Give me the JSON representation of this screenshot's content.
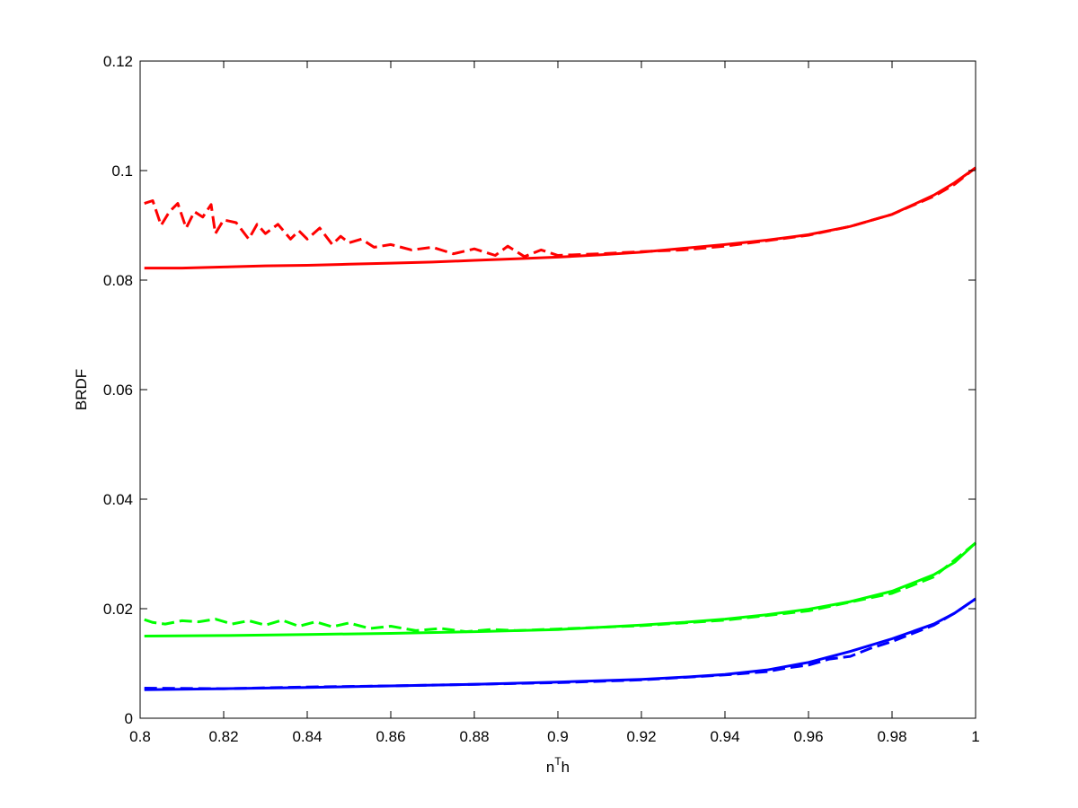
{
  "chart_data": {
    "type": "line",
    "title": "",
    "xlabel_base": "n",
    "xlabel_sup": "T",
    "xlabel_tail": "h",
    "ylabel": "BRDF",
    "xlim": [
      0.8,
      1
    ],
    "ylim": [
      0,
      0.12
    ],
    "xticks": [
      0.8,
      0.82,
      0.84,
      0.86,
      0.88,
      0.9,
      0.92,
      0.94,
      0.96,
      0.98,
      1
    ],
    "xtick_labels": [
      "0.8",
      "0.82",
      "0.84",
      "0.86",
      "0.88",
      "0.9",
      "0.92",
      "0.94",
      "0.96",
      "0.98",
      "1"
    ],
    "yticks": [
      0,
      0.02,
      0.04,
      0.06,
      0.08,
      0.1,
      0.12
    ],
    "ytick_labels": [
      "0",
      "0.02",
      "0.04",
      "0.06",
      "0.08",
      "0.1",
      "0.12"
    ],
    "grid": false,
    "series": [
      {
        "color": "#ff0000",
        "style": "solid",
        "x": [
          0.801,
          0.81,
          0.82,
          0.83,
          0.84,
          0.85,
          0.86,
          0.87,
          0.88,
          0.89,
          0.9,
          0.91,
          0.92,
          0.93,
          0.94,
          0.95,
          0.96,
          0.97,
          0.98,
          0.99,
          0.995,
          1.0
        ],
        "y": [
          0.0822,
          0.0822,
          0.0824,
          0.0826,
          0.0827,
          0.0829,
          0.0831,
          0.0833,
          0.0836,
          0.0839,
          0.0842,
          0.0846,
          0.0851,
          0.0858,
          0.0865,
          0.0873,
          0.0883,
          0.0898,
          0.092,
          0.0955,
          0.0978,
          0.1005
        ]
      },
      {
        "color": "#ff0000",
        "style": "dashed",
        "x": [
          0.801,
          0.803,
          0.805,
          0.807,
          0.809,
          0.811,
          0.813,
          0.815,
          0.817,
          0.818,
          0.82,
          0.823,
          0.826,
          0.828,
          0.83,
          0.833,
          0.836,
          0.838,
          0.84,
          0.843,
          0.846,
          0.848,
          0.85,
          0.853,
          0.856,
          0.86,
          0.865,
          0.87,
          0.875,
          0.88,
          0.885,
          0.888,
          0.892,
          0.896,
          0.9,
          0.91,
          0.92,
          0.93,
          0.94,
          0.95,
          0.96,
          0.97,
          0.98,
          0.99,
          0.995,
          1.0
        ],
        "y": [
          0.094,
          0.0945,
          0.09,
          0.0925,
          0.094,
          0.0895,
          0.0925,
          0.0915,
          0.0938,
          0.0885,
          0.091,
          0.0905,
          0.0875,
          0.0902,
          0.0885,
          0.0902,
          0.0875,
          0.089,
          0.0875,
          0.0895,
          0.0865,
          0.088,
          0.0868,
          0.0875,
          0.086,
          0.0865,
          0.0855,
          0.086,
          0.0848,
          0.0857,
          0.0845,
          0.0862,
          0.0843,
          0.0855,
          0.0845,
          0.0848,
          0.0852,
          0.0855,
          0.0862,
          0.0872,
          0.0882,
          0.0898,
          0.092,
          0.0953,
          0.0975,
          0.1005
        ]
      },
      {
        "color": "#00ff00",
        "style": "solid",
        "x": [
          0.801,
          0.82,
          0.84,
          0.86,
          0.88,
          0.9,
          0.91,
          0.92,
          0.93,
          0.94,
          0.95,
          0.96,
          0.97,
          0.98,
          0.99,
          0.995,
          1.0
        ],
        "y": [
          0.015,
          0.0151,
          0.0153,
          0.0155,
          0.0158,
          0.0162,
          0.0166,
          0.017,
          0.0175,
          0.0181,
          0.0189,
          0.0199,
          0.0213,
          0.0232,
          0.0262,
          0.0285,
          0.032
        ]
      },
      {
        "color": "#00ff00",
        "style": "dashed",
        "x": [
          0.801,
          0.803,
          0.806,
          0.81,
          0.814,
          0.818,
          0.822,
          0.826,
          0.83,
          0.834,
          0.838,
          0.842,
          0.846,
          0.85,
          0.855,
          0.86,
          0.866,
          0.872,
          0.878,
          0.884,
          0.89,
          0.9,
          0.92,
          0.94,
          0.96,
          0.98,
          0.99,
          1.0
        ],
        "y": [
          0.018,
          0.0175,
          0.0172,
          0.0178,
          0.0176,
          0.0181,
          0.0172,
          0.0178,
          0.017,
          0.0179,
          0.0168,
          0.0176,
          0.0167,
          0.0174,
          0.0164,
          0.0168,
          0.016,
          0.0164,
          0.0158,
          0.0162,
          0.016,
          0.0163,
          0.0169,
          0.0179,
          0.0196,
          0.0228,
          0.0258,
          0.032
        ]
      },
      {
        "color": "#0000ff",
        "style": "solid",
        "x": [
          0.801,
          0.82,
          0.84,
          0.86,
          0.88,
          0.9,
          0.92,
          0.93,
          0.94,
          0.95,
          0.96,
          0.97,
          0.98,
          0.99,
          0.995,
          1.0
        ],
        "y": [
          0.0052,
          0.0054,
          0.0056,
          0.0059,
          0.0062,
          0.0066,
          0.0071,
          0.0075,
          0.008,
          0.0088,
          0.0102,
          0.0122,
          0.0145,
          0.0172,
          0.0192,
          0.0218
        ]
      },
      {
        "color": "#0000ff",
        "style": "dashed",
        "x": [
          0.801,
          0.82,
          0.84,
          0.86,
          0.88,
          0.9,
          0.92,
          0.94,
          0.95,
          0.955,
          0.96,
          0.965,
          0.97,
          0.975,
          0.98,
          0.985,
          0.99,
          0.995,
          1.0
        ],
        "y": [
          0.0055,
          0.0054,
          0.0057,
          0.0059,
          0.0062,
          0.0065,
          0.007,
          0.0079,
          0.0085,
          0.0092,
          0.0097,
          0.0108,
          0.0113,
          0.0128,
          0.014,
          0.0155,
          0.017,
          0.0192,
          0.0218
        ]
      }
    ]
  }
}
